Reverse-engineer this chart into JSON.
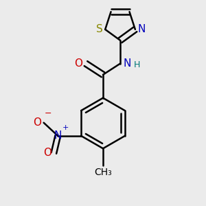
{
  "background_color": "#ebebeb",
  "bond_color": "#000000",
  "bond_width": 1.8,
  "figsize": [
    3.0,
    3.0
  ],
  "dpi": 100,
  "xlim": [
    0.0,
    1.0
  ],
  "ylim": [
    0.0,
    1.0
  ]
}
